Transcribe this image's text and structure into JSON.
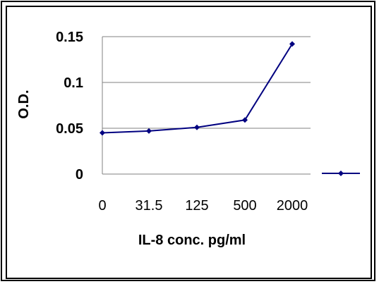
{
  "chart_data": {
    "type": "line",
    "title": "",
    "xlabel": "IL-8 conc. pg/ml",
    "ylabel": "O.D.",
    "categories": [
      "0",
      "31.5",
      "125",
      "500",
      "2000"
    ],
    "series": [
      {
        "values": [
          0.045,
          0.047,
          0.051,
          0.059,
          0.142
        ]
      }
    ],
    "ylim": [
      0,
      0.15
    ],
    "yticks": [
      "0",
      "0.05",
      "0.1",
      "0.15"
    ],
    "grid": "horizontal",
    "legend_position": "right",
    "colors": {
      "series": "#000080",
      "grid": "#808080",
      "axis": "#808080"
    }
  }
}
